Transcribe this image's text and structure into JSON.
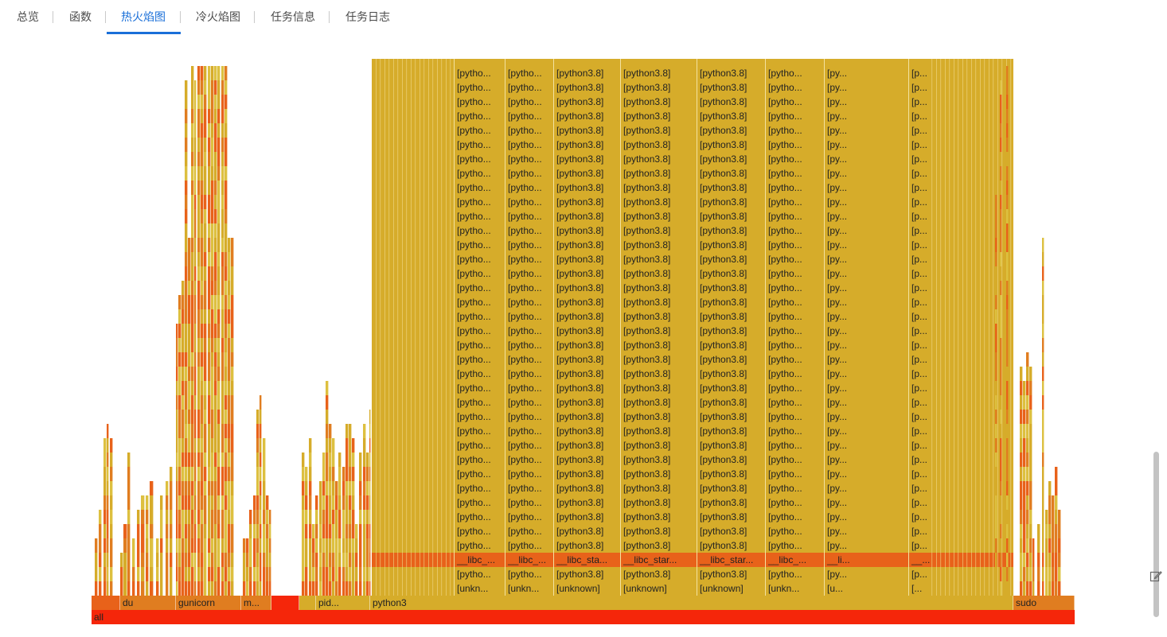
{
  "tabs": [
    {
      "label": "总览",
      "active": false
    },
    {
      "label": "函数",
      "active": false
    },
    {
      "label": "热火焰图",
      "active": true
    },
    {
      "label": "冷火焰图",
      "active": false
    },
    {
      "label": "任务信息",
      "active": false
    },
    {
      "label": "任务日志",
      "active": false
    }
  ],
  "icons": {
    "scrollbar": "vertical-scrollbar",
    "edit": "edit-icon"
  },
  "colors": {
    "tab_active": "#1a6fd8",
    "tab_text": "#4a4a4a",
    "flame_root": "#f5260a",
    "flame_orange": "#e8621a",
    "flame_mid": "#e07d20",
    "flame_gold": "#d6ac2a",
    "flame_yellow": "#ddc040"
  },
  "chart_data": {
    "type": "flame",
    "root": "all",
    "level1": [
      "du",
      "gunicorn",
      "m...",
      "pid...",
      "python3",
      "sudo"
    ],
    "python3_columns": [
      {
        "unknown": "[unkn...",
        "libc": "__libc_...",
        "frame": "[pytho..."
      },
      {
        "unknown": "[unkn...",
        "libc": "__libc_...",
        "frame": "[pytho..."
      },
      {
        "unknown": "[unknown]",
        "libc": "__libc_sta...",
        "frame": "[python3.8]"
      },
      {
        "unknown": "[unknown]",
        "libc": "__libc_star...",
        "frame": "[python3.8]"
      },
      {
        "unknown": "[unknown]",
        "libc": "__libc_star...",
        "frame": "[python3.8]"
      },
      {
        "unknown": "[unkn...",
        "libc": "__libc_...",
        "frame": "[pytho..."
      },
      {
        "unknown": "[u...",
        "libc": "__li...",
        "frame": "[py..."
      },
      {
        "unknown": "[...",
        "libc": "__...",
        "frame": "[p..."
      }
    ],
    "frames_per_column": 35
  }
}
